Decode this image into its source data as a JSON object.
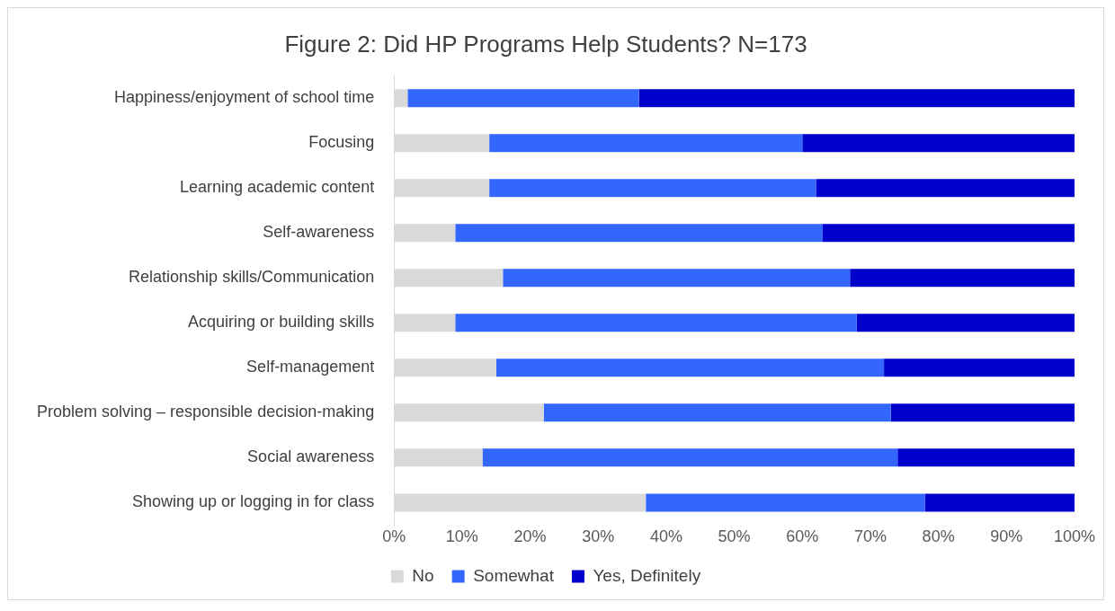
{
  "chart_data": {
    "type": "bar",
    "title": "Figure 2: Did HP Programs Help Students? N=173",
    "orientation": "horizontal",
    "stacked": true,
    "categories": [
      "Happiness/enjoyment of school time",
      "Focusing",
      "Learning academic content",
      "Self-awareness",
      "Relationship skills/Communication",
      "Acquiring or building skills",
      "Self-management",
      "Problem solving – responsible decision-making",
      "Social awareness",
      "Showing up or logging in for class"
    ],
    "series": [
      {
        "name": "No",
        "color": "#d9d9d9",
        "values": [
          2,
          14,
          14,
          9,
          16,
          9,
          15,
          22,
          13,
          37
        ]
      },
      {
        "name": "Somewhat",
        "color": "#3366ff",
        "values": [
          34,
          46,
          48,
          54,
          51,
          59,
          57,
          51,
          61,
          41
        ]
      },
      {
        "name": "Yes, Definitely",
        "color": "#0000cc",
        "values": [
          64,
          40,
          38,
          37,
          33,
          32,
          28,
          27,
          26,
          22
        ]
      }
    ],
    "xlim": [
      0,
      100
    ],
    "xticks": [
      {
        "value": 0,
        "label": "0%"
      },
      {
        "value": 10,
        "label": "10%"
      },
      {
        "value": 20,
        "label": "20%"
      },
      {
        "value": 30,
        "label": "30%"
      },
      {
        "value": 40,
        "label": "40%"
      },
      {
        "value": 50,
        "label": "50%"
      },
      {
        "value": 60,
        "label": "60%"
      },
      {
        "value": 70,
        "label": "70%"
      },
      {
        "value": 80,
        "label": "80%"
      },
      {
        "value": 90,
        "label": "90%"
      },
      {
        "value": 100,
        "label": "100%"
      }
    ],
    "grid": false,
    "legend": "bottom"
  }
}
